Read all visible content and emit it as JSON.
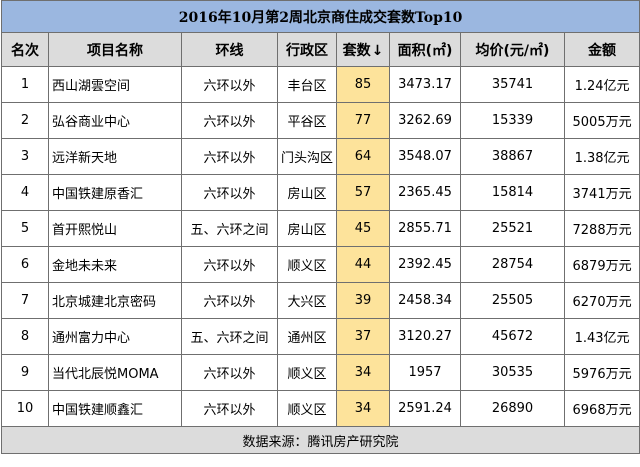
{
  "title": "2016年10月第2周北京商住成交套数Top10",
  "headers": {
    "rank": "名次",
    "project": "项目名称",
    "ring": "环线",
    "district": "行政区",
    "units": "套数",
    "sort_icon": "↓",
    "area": "面积(㎡)",
    "avg_price": "均价(元/㎡)",
    "amount": "金额"
  },
  "rows": [
    {
      "rank": "1",
      "project": "西山湖雲空间",
      "ring": "六环以外",
      "district": "丰台区",
      "units": "85",
      "area": "3473.17",
      "avg_price": "35741",
      "amount": "1.24亿元"
    },
    {
      "rank": "2",
      "project": "弘谷商业中心",
      "ring": "六环以外",
      "district": "平谷区",
      "units": "77",
      "area": "3262.69",
      "avg_price": "15339",
      "amount": "5005万元"
    },
    {
      "rank": "3",
      "project": "远洋新天地",
      "ring": "六环以外",
      "district": "门头沟区",
      "units": "64",
      "area": "3548.07",
      "avg_price": "38867",
      "amount": "1.38亿元"
    },
    {
      "rank": "4",
      "project": "中国铁建原香汇",
      "ring": "六环以外",
      "district": "房山区",
      "units": "57",
      "area": "2365.45",
      "avg_price": "15814",
      "amount": "3741万元"
    },
    {
      "rank": "5",
      "project": "首开熙悦山",
      "ring": "五、六环之间",
      "district": "房山区",
      "units": "45",
      "area": "2855.71",
      "avg_price": "25521",
      "amount": "7288万元"
    },
    {
      "rank": "6",
      "project": "金地未未来",
      "ring": "六环以外",
      "district": "顺义区",
      "units": "44",
      "area": "2392.45",
      "avg_price": "28754",
      "amount": "6879万元"
    },
    {
      "rank": "7",
      "project": "北京城建北京密码",
      "ring": "六环以外",
      "district": "大兴区",
      "units": "39",
      "area": "2458.34",
      "avg_price": "25505",
      "amount": "6270万元"
    },
    {
      "rank": "8",
      "project": "通州富力中心",
      "ring": "五、六环之间",
      "district": "通州区",
      "units": "37",
      "area": "3120.27",
      "avg_price": "45672",
      "amount": "1.43亿元"
    },
    {
      "rank": "9",
      "project": "当代北辰悦MOMA",
      "ring": "六环以外",
      "district": "顺义区",
      "units": "34",
      "area": "1957",
      "avg_price": "30535",
      "amount": "5976万元"
    },
    {
      "rank": "10",
      "project": "中国铁建顺鑫汇",
      "ring": "六环以外",
      "district": "顺义区",
      "units": "34",
      "area": "2591.24",
      "avg_price": "26890",
      "amount": "6968万元"
    }
  ],
  "source": "数据来源：腾讯房产研究院",
  "colors": {
    "title_bg": "#9bb7e0",
    "header_bg": "#dcdcdc",
    "count_highlight": "#fde39b",
    "grid": "#6f6f6f"
  }
}
